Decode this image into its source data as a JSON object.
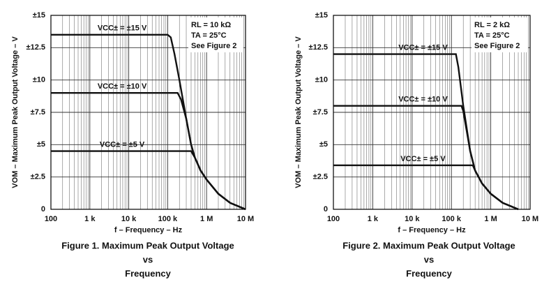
{
  "chart_data": [
    {
      "type": "line",
      "caption": [
        "Figure 1. Maximum Peak Output Voltage",
        "vs",
        "Frequency"
      ],
      "x_label": "f – Frequency – Hz",
      "y_label": "VOM – Maximum Peak Output Voltage – V",
      "annotations": [
        "RL = 10 kΩ",
        "TA = 25°C",
        "See Figure 2"
      ],
      "xscale": "log",
      "grid": true,
      "minor_grid": true,
      "color": "#111111",
      "xlim": [
        100,
        10000000
      ],
      "ylim": [
        0,
        15
      ],
      "xticks": [
        100,
        {
          "value": 1000,
          "label": "1 k"
        },
        {
          "value": 10000,
          "label": "10 k"
        },
        {
          "value": 100000,
          "label": "100 k"
        },
        {
          "value": 1000000,
          "label": "1 M"
        },
        {
          "value": 10000000,
          "label": "10 M"
        }
      ],
      "yticks": [
        0,
        {
          "value": 2.5,
          "label": "±2.5"
        },
        {
          "value": 5,
          "label": "±5"
        },
        {
          "value": 7.5,
          "label": "±7.5"
        },
        {
          "value": 10,
          "label": "±10"
        },
        {
          "value": 12.5,
          "label": "±12.5"
        },
        {
          "value": 15,
          "label": "±15"
        }
      ],
      "series": [
        {
          "name": "VCC± = ±15 V",
          "x": [
            100,
            100000,
            120000,
            150000,
            200000,
            300000,
            400000,
            500000,
            700000,
            1000000,
            2000000,
            4000000,
            10000000
          ],
          "values": [
            13.5,
            13.5,
            13.3,
            12,
            10,
            7,
            5,
            4,
            3,
            2.3,
            1.2,
            0.5,
            0
          ]
        },
        {
          "name": "VCC± = ±10 V",
          "x": [
            100,
            180000,
            220000,
            300000,
            400000,
            500000,
            700000,
            1000000,
            2000000,
            4000000,
            10000000
          ],
          "values": [
            9,
            9,
            8.5,
            7,
            5,
            4,
            3,
            2.3,
            1.2,
            0.5,
            0
          ]
        },
        {
          "name": "VCC± = ±5 V",
          "x": [
            100,
            400000,
            500000,
            700000,
            1000000,
            2000000,
            4000000,
            10000000
          ],
          "values": [
            4.5,
            4.5,
            4,
            3,
            2.3,
            1.2,
            0.5,
            0
          ]
        }
      ]
    },
    {
      "type": "line",
      "caption": [
        "Figure 2. Maximum Peak Output Voltage",
        "vs",
        "Frequency"
      ],
      "x_label": "f – Frequency – Hz",
      "y_label": "VOM – Maximum Peak Output Voltage – V",
      "annotations": [
        "RL = 2 kΩ",
        "TA = 25°C",
        "See Figure 2"
      ],
      "xscale": "log",
      "grid": true,
      "minor_grid": true,
      "color": "#111111",
      "xlim": [
        100,
        10000000
      ],
      "ylim": [
        0,
        15
      ],
      "xticks": [
        100,
        {
          "value": 1000,
          "label": "1 k"
        },
        {
          "value": 10000,
          "label": "10 k"
        },
        {
          "value": 100000,
          "label": "100 k"
        },
        {
          "value": 1000000,
          "label": "1 M"
        },
        {
          "value": 10000000,
          "label": "10 M"
        }
      ],
      "yticks": [
        0,
        {
          "value": 2.5,
          "label": "±2.5"
        },
        {
          "value": 5,
          "label": "±5"
        },
        {
          "value": 7.5,
          "label": "±7.5"
        },
        {
          "value": 10,
          "label": "±10"
        },
        {
          "value": 12.5,
          "label": "±12.5"
        },
        {
          "value": 15,
          "label": "±15"
        }
      ],
      "series": [
        {
          "name": "VCC± = ±15 V",
          "x": [
            100,
            130000,
            150000,
            200000,
            300000,
            400000,
            600000,
            1000000,
            2000000,
            5000000
          ],
          "values": [
            12,
            12,
            11,
            8,
            4.5,
            3,
            2,
            1.2,
            0.5,
            0
          ]
        },
        {
          "name": "VCC± = ±10 V",
          "x": [
            100,
            180000,
            200000,
            300000,
            400000,
            600000,
            1000000,
            2000000,
            5000000
          ],
          "values": [
            8,
            8,
            7.6,
            4.5,
            3,
            2,
            1.2,
            0.5,
            0
          ]
        },
        {
          "name": "VCC± = ±5 V",
          "x": [
            100,
            350000,
            400000,
            600000,
            1000000,
            2000000,
            5000000
          ],
          "values": [
            3.4,
            3.4,
            3,
            2,
            1.2,
            0.5,
            0
          ]
        }
      ]
    }
  ]
}
